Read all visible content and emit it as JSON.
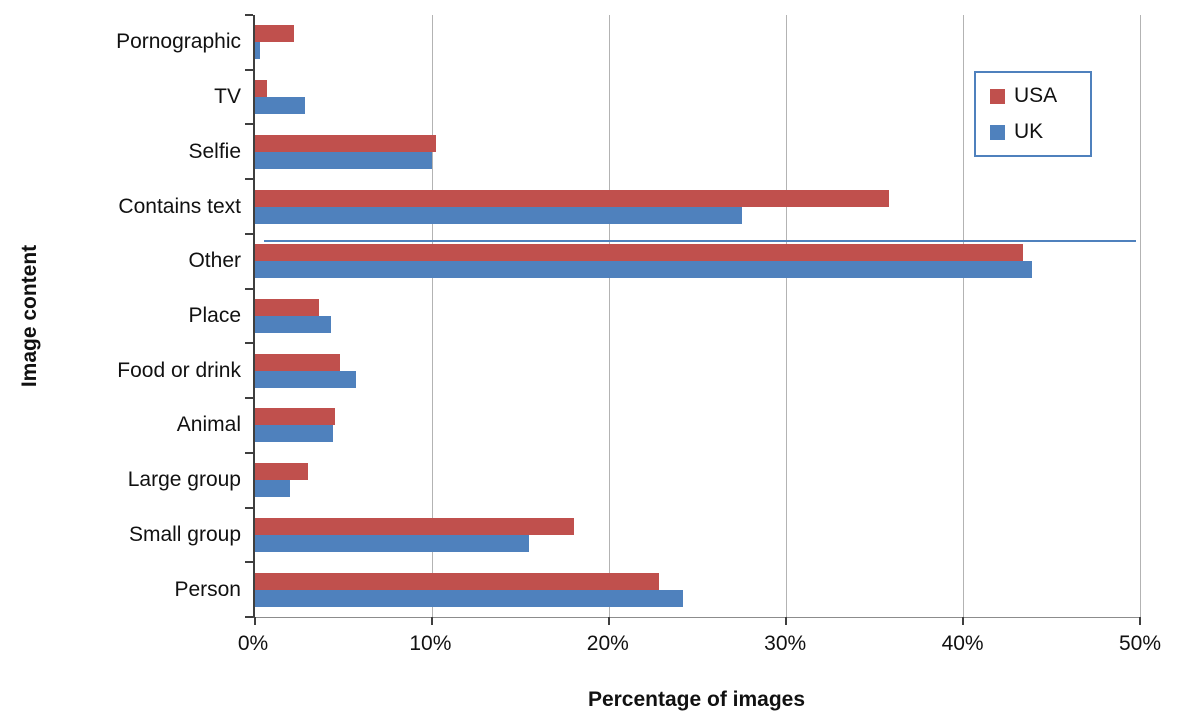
{
  "chart_data": {
    "type": "bar",
    "orientation": "horizontal",
    "title": "",
    "xlabel": "Percentage of images",
    "ylabel": "Image content",
    "xlim": [
      0,
      50
    ],
    "x_ticks": [
      "0%",
      "10%",
      "20%",
      "30%",
      "40%",
      "50%"
    ],
    "x_tick_values": [
      0,
      10,
      20,
      30,
      40,
      50
    ],
    "grid": "vertical-gridlines-on",
    "categories_top_to_bottom": [
      "Pornographic",
      "TV",
      "Selfie",
      "Contains text",
      "Other",
      "Place",
      "Food or drink",
      "Animal",
      "Large group",
      "Small group",
      "Person"
    ],
    "series": [
      {
        "name": "USA",
        "color": "#C0504D",
        "values": [
          2.2,
          0.7,
          10.2,
          35.8,
          43.4,
          3.6,
          4.8,
          4.5,
          3.0,
          18.0,
          22.8
        ]
      },
      {
        "name": "UK",
        "color": "#4F81BD",
        "values": [
          0.3,
          2.8,
          10.0,
          27.5,
          43.9,
          4.3,
          5.7,
          4.4,
          2.0,
          15.5,
          24.2
        ]
      }
    ],
    "legend": {
      "position": "top-right",
      "entries": [
        "USA",
        "UK"
      ]
    },
    "annotations": [
      {
        "name": "stray-thin-line",
        "description": "thin horizontal blue line artifact between the Contains text and Other rows",
        "color": "#4F81BD",
        "value_percent": 49.3
      }
    ]
  },
  "colors": {
    "usa_bar": "#C0504D",
    "uk_bar": "#4F81BD",
    "gridline": "#B3B3B3",
    "axis_line": "#3F3F3F",
    "legend_border": "#4F81BD",
    "background": "#FFFFFF",
    "text": "#111111"
  }
}
